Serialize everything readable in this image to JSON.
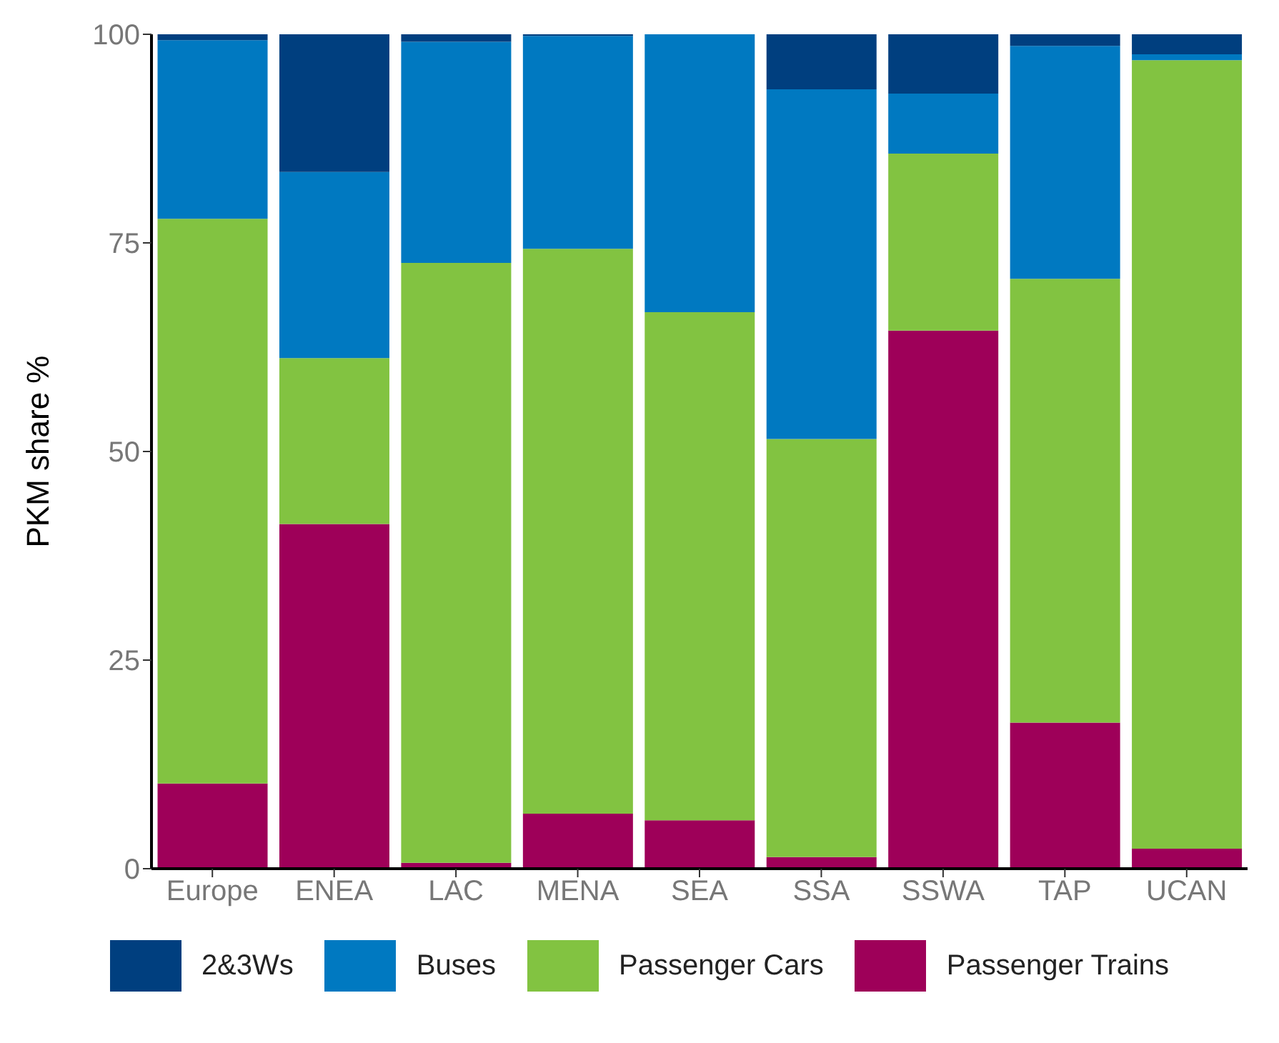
{
  "chart_data": {
    "type": "bar",
    "stacked": true,
    "ylabel": "PKM share %",
    "categories": [
      "Europe",
      "ENEA",
      "LAC",
      "MENA",
      "SEA",
      "SSA",
      "SSWA",
      "TAP",
      "UCAN"
    ],
    "ylim": [
      0,
      100
    ],
    "yticks": [
      0,
      25,
      50,
      75,
      100
    ],
    "legend": "bottom",
    "series": [
      {
        "name": "Passenger Trains",
        "color": "#9e0059",
        "values": [
          10.2,
          41.3,
          0.7,
          6.6,
          5.8,
          1.4,
          64.5,
          17.5,
          2.4
        ]
      },
      {
        "name": "Passenger Cars",
        "color": "#82c341",
        "values": [
          67.7,
          19.9,
          71.9,
          67.7,
          60.9,
          50.1,
          21.2,
          53.2,
          94.5
        ]
      },
      {
        "name": "Buses",
        "color": "#0079c1",
        "values": [
          21.4,
          22.3,
          26.5,
          25.5,
          33.3,
          41.9,
          7.2,
          27.9,
          0.7
        ]
      },
      {
        "name": "2&3Ws",
        "color": "#003f7f",
        "values": [
          0.7,
          16.5,
          0.9,
          0.2,
          0,
          6.6,
          7.1,
          1.4,
          2.4
        ]
      }
    ]
  }
}
